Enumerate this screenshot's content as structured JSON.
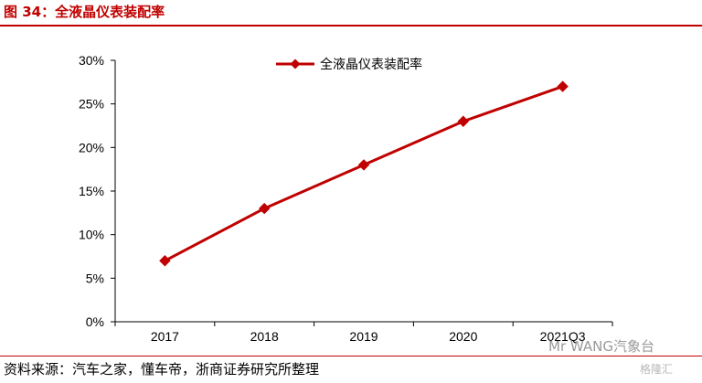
{
  "figure_title": "图 34：全液晶仪表装配率",
  "source_note": "资料来源：汽车之家，懂车帝，浙商证券研究所整理",
  "watermark": "Mr WANG汽象台",
  "watermark2": "格隆汇",
  "colors": {
    "accent": "#c00000",
    "line": "#c00000"
  },
  "chart_data": {
    "type": "line",
    "categories": [
      "2017",
      "2018",
      "2019",
      "2020",
      "2021Q3"
    ],
    "series": [
      {
        "name": "全液晶仪表装配率",
        "values": [
          7,
          13,
          18,
          23,
          27
        ]
      }
    ],
    "yticks": [
      "0%",
      "5%",
      "10%",
      "15%",
      "20%",
      "25%",
      "30%"
    ],
    "ylim": [
      0,
      30
    ],
    "y_unit": "%",
    "grid": false,
    "legend": "top-right",
    "marker": "diamond"
  }
}
